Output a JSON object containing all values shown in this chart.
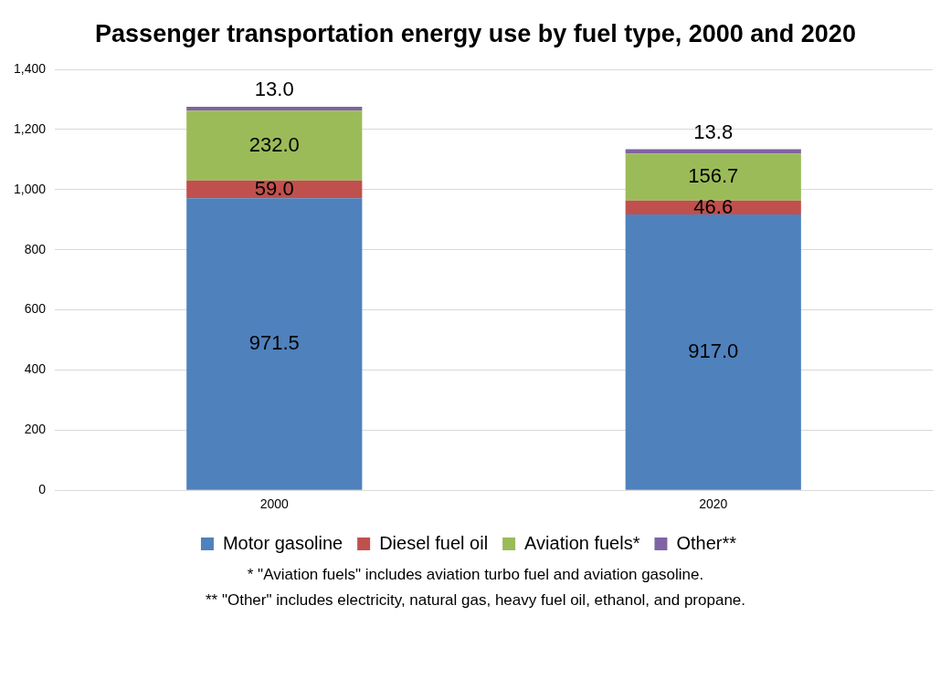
{
  "chart_data": {
    "type": "bar",
    "title": "Passenger transportation energy use by fuel type, 2000 and 2020",
    "categories": [
      "2000",
      "2020"
    ],
    "stacked": true,
    "series": [
      {
        "name": "Motor gasoline",
        "color": "#4f81bd",
        "values": [
          971.5,
          917.0
        ],
        "value_labels": [
          "971.5",
          "917.0"
        ]
      },
      {
        "name": "Diesel fuel oil",
        "color": "#c0504d",
        "values": [
          59.0,
          46.6
        ],
        "value_labels": [
          "59.0",
          "46.6"
        ]
      },
      {
        "name": "Aviation fuels*",
        "color": "#9bbb59",
        "values": [
          232.0,
          156.7
        ],
        "value_labels": [
          "232.0",
          "156.7"
        ]
      },
      {
        "name": "Other**",
        "color": "#8064a2",
        "values": [
          13.0,
          13.8
        ],
        "value_labels": [
          "13.0",
          "13.8"
        ]
      }
    ],
    "ylim": [
      0,
      1400
    ],
    "yticks": [
      0,
      200,
      400,
      600,
      800,
      {
        "value": 1000,
        "label": "1,000"
      },
      {
        "value": 1200,
        "label": "1,200"
      },
      {
        "value": 1400,
        "label": "1,400"
      }
    ],
    "grid": "y",
    "legend": "bottom",
    "annotations": [
      "* \"Aviation fuels\" includes aviation turbo fuel and aviation gasoline.",
      "** \"Other\" includes electricity, natural gas, heavy fuel oil, ethanol, and propane."
    ]
  }
}
